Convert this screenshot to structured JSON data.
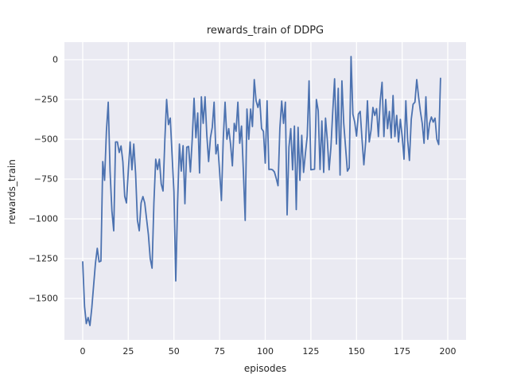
{
  "chart_data": {
    "type": "line",
    "title": "rewards_train of DDPG",
    "xlabel": "episodes",
    "ylabel": "rewards_train",
    "series": [
      {
        "name": "rewards_train",
        "x_start": 0,
        "x_step": 1,
        "values": [
          -1270,
          -1550,
          -1658,
          -1620,
          -1670,
          -1560,
          -1420,
          -1280,
          -1185,
          -1270,
          -1265,
          -640,
          -758,
          -450,
          -267,
          -700,
          -950,
          -1075,
          -517,
          -517,
          -583,
          -542,
          -642,
          -858,
          -900,
          -700,
          -517,
          -692,
          -530,
          -715,
          -1008,
          -1075,
          -900,
          -860,
          -900,
          -1000,
          -1100,
          -1250,
          -1310,
          -900,
          -625,
          -690,
          -625,
          -780,
          -825,
          -500,
          -250,
          -408,
          -367,
          -600,
          -830,
          -1390,
          -900,
          -530,
          -700,
          -540,
          -905,
          -550,
          -545,
          -705,
          -500,
          -242,
          -490,
          -335,
          -712,
          -233,
          -400,
          -233,
          -470,
          -640,
          -490,
          -425,
          -267,
          -592,
          -533,
          -700,
          -885,
          -500,
          -267,
          -500,
          -433,
          -530,
          -667,
          -400,
          -450,
          -267,
          -525,
          -417,
          -700,
          -1010,
          -310,
          -500,
          -310,
          -420,
          -125,
          -258,
          -300,
          -250,
          -433,
          -450,
          -650,
          -258,
          -690,
          -688,
          -692,
          -705,
          -745,
          -792,
          -430,
          -260,
          -400,
          -267,
          -975,
          -550,
          -433,
          -692,
          -417,
          -942,
          -425,
          -758,
          -475,
          -708,
          -590,
          -480,
          -133,
          -692,
          -690,
          -688,
          -250,
          -320,
          -690,
          -385,
          -708,
          -367,
          -500,
          -692,
          -550,
          -325,
          -120,
          -530,
          -180,
          -725,
          -133,
          -400,
          -550,
          -700,
          -680,
          20,
          -342,
          -392,
          -480,
          -342,
          -325,
          -500,
          -660,
          -515,
          -258,
          -517,
          -442,
          -300,
          -350,
          -308,
          -483,
          -258,
          -142,
          -483,
          -250,
          -433,
          -325,
          -492,
          -225,
          -483,
          -350,
          -517,
          -375,
          -483,
          -625,
          -258,
          -500,
          -633,
          -375,
          -280,
          -267,
          -125,
          -233,
          -325,
          -400,
          -525,
          -233,
          -500,
          -400,
          -360,
          -392,
          -367,
          -500,
          -533,
          -117
        ]
      }
    ],
    "xticks": [
      0,
      25,
      50,
      75,
      100,
      125,
      150,
      175,
      200
    ],
    "yticks": [
      0,
      -250,
      -500,
      -750,
      -1000,
      -1250,
      -1500
    ],
    "xlim": [
      -10,
      210
    ],
    "ylim": [
      -1760,
      110
    ],
    "grid": true,
    "legend": false,
    "style": {
      "line_color": "#4c72b0",
      "plot_bg": "#eaeaf2",
      "grid_color": "#ffffff",
      "text_color": "#262626",
      "figure_bg": "#ffffff"
    }
  }
}
